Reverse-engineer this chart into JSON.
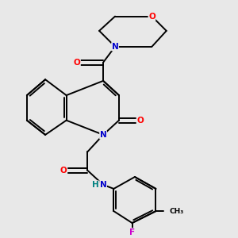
{
  "background_color": "#e8e8e8",
  "bond_color": "#000000",
  "atom_colors": {
    "N": "#0000cc",
    "O": "#ff0000",
    "F": "#cc00cc",
    "H": "#008080",
    "C": "#000000"
  }
}
